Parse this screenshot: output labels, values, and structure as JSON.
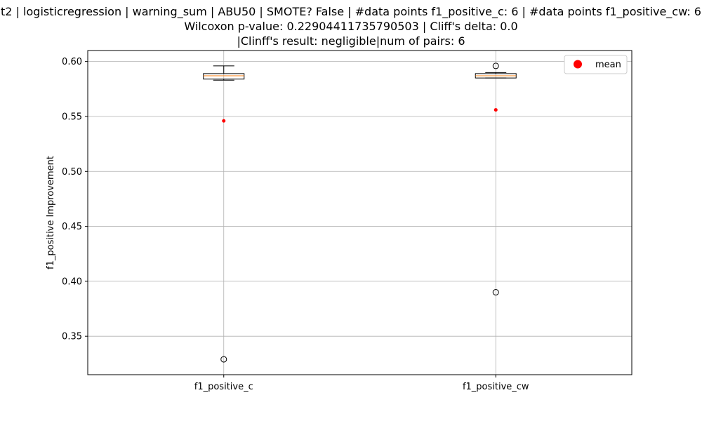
{
  "chart_data": {
    "type": "box",
    "title_lines": [
      "t2 | logisticregression | warning_sum | ABU50 | SMOTE? False | #data points f1_positive_c: 6 | #data points f1_positive_cw: 6",
      "Wilcoxon p-value: 0.22904411735790503 | Cliff's delta: 0.0",
      "|Clinff's result: negligible|num of pairs: 6"
    ],
    "xlabel": "",
    "ylabel": "f1_positive Improvement",
    "ylim": [
      0.315,
      0.61
    ],
    "yticks": [
      0.35,
      0.4,
      0.45,
      0.5,
      0.55,
      0.6
    ],
    "ytick_labels": [
      "0.35",
      "0.40",
      "0.45",
      "0.50",
      "0.55",
      "0.60"
    ],
    "grid": true,
    "legend": {
      "position": "top-right",
      "entries": [
        {
          "label": "mean",
          "color": "#ff0000"
        }
      ]
    },
    "colors": {
      "box": "#000000",
      "median": "#ff7f0e",
      "mean": "#ff0000",
      "grid": "#b0b0b0"
    },
    "categories": [
      "f1_positive_c",
      "f1_positive_cw"
    ],
    "boxes": [
      {
        "name": "f1_positive_c",
        "whisker_low": 0.583,
        "q1": 0.584,
        "median": 0.587,
        "q3": 0.589,
        "whisker_high": 0.596,
        "outliers": [
          0.329
        ],
        "mean": 0.546
      },
      {
        "name": "f1_positive_cw",
        "whisker_low": 0.585,
        "q1": 0.585,
        "median": 0.587,
        "q3": 0.589,
        "whisker_high": 0.59,
        "outliers": [
          0.596,
          0.39
        ],
        "mean": 0.556
      }
    ]
  }
}
